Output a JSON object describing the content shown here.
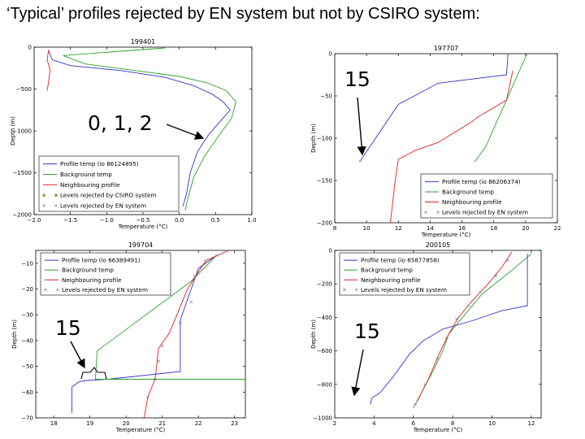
{
  "slide_title": "‘Typical’ profiles rejected by EN system but not by CSIRO system:",
  "colors": {
    "profile": "#3333cc",
    "background": "#2ca02c",
    "neighbour": "#e02020",
    "csiro": "#999933",
    "en": "#888888",
    "axis": "#000000",
    "annotation": "#000000"
  },
  "chart_data": [
    {
      "type": "line",
      "title": "199401",
      "xlabel": "Temperature (°C)",
      "ylabel": "Depth (m)",
      "xlim": [
        -2.0,
        1.0
      ],
      "ylim": [
        -2000,
        0
      ],
      "xticks": [
        -2.0,
        -1.5,
        -1.0,
        -0.5,
        0.0,
        0.5,
        1.0
      ],
      "xtick_labels": [
        "−2.0",
        "−1.5",
        "−1.0",
        "−0.5",
        "0.0",
        "0.5",
        "1.0"
      ],
      "yticks": [
        0,
        -500,
        -1000,
        -1500,
        -2000
      ],
      "ytick_labels": [
        "0",
        "−500",
        "−1000",
        "−1500",
        "−2000"
      ],
      "legend_position": "lower-left",
      "legend": [
        "Profile temp (io 86124895)",
        "Background temp",
        "Neighbouring profile",
        "Levels rejected by CSIRO system",
        "Levels rejected by EN system"
      ],
      "annotation": {
        "text": "0, 1, 2"
      },
      "series": [
        {
          "name": "Profile temp (io 86124895)",
          "color": "profile",
          "points": [
            [
              -1.8,
              -40
            ],
            [
              -1.75,
              -150
            ],
            [
              -1.5,
              -220
            ],
            [
              -0.8,
              -280
            ],
            [
              -0.2,
              -360
            ],
            [
              0.2,
              -460
            ],
            [
              0.45,
              -560
            ],
            [
              0.6,
              -650
            ],
            [
              0.7,
              -750
            ],
            [
              0.55,
              -900
            ],
            [
              0.4,
              -1050
            ],
            [
              0.25,
              -1250
            ],
            [
              0.15,
              -1500
            ],
            [
              0.1,
              -1750
            ],
            [
              0.05,
              -1900
            ]
          ]
        },
        {
          "name": "Background temp",
          "color": "background",
          "points": [
            [
              -0.2,
              -10
            ],
            [
              -1.6,
              -100
            ],
            [
              -1.3,
              -200
            ],
            [
              -0.6,
              -280
            ],
            [
              0.0,
              -350
            ],
            [
              0.4,
              -430
            ],
            [
              0.65,
              -520
            ],
            [
              0.78,
              -650
            ],
            [
              0.72,
              -850
            ],
            [
              0.55,
              -1050
            ],
            [
              0.35,
              -1300
            ],
            [
              0.2,
              -1550
            ],
            [
              0.12,
              -1800
            ],
            [
              0.08,
              -1950
            ]
          ]
        },
        {
          "name": "Neighbouring profile",
          "color": "neighbour",
          "points": [
            [
              -1.8,
              -30
            ],
            [
              -1.82,
              -150
            ],
            [
              -1.78,
              -280
            ],
            [
              -1.8,
              -400
            ],
            [
              -1.82,
              -520
            ]
          ]
        }
      ]
    },
    {
      "type": "line",
      "title": "197707",
      "xlabel": "Temperature (°C)",
      "ylabel": "Depth (m)",
      "xlim": [
        8,
        22
      ],
      "ylim": [
        -200,
        0
      ],
      "xticks": [
        8,
        10,
        12,
        14,
        16,
        18,
        20,
        22
      ],
      "xtick_labels": [
        "8",
        "10",
        "12",
        "14",
        "16",
        "18",
        "20",
        "22"
      ],
      "yticks": [
        0,
        -50,
        -100,
        -150,
        -200
      ],
      "ytick_labels": [
        "0",
        "−50",
        "−100",
        "−150",
        "−200"
      ],
      "legend_position": "lower-right",
      "legend": [
        "Profile temp (io 86206374)",
        "Background temp",
        "Neighbouring profile",
        "Levels rejected by EN system"
      ],
      "annotation": {
        "text": "15"
      },
      "series": [
        {
          "name": "Profile temp (io 86206374)",
          "color": "profile",
          "points": [
            [
              18.9,
              0
            ],
            [
              18.8,
              -25
            ],
            [
              14.5,
              -35
            ],
            [
              12,
              -60
            ],
            [
              9.6,
              -127
            ]
          ]
        },
        {
          "name": "Background temp",
          "color": "background",
          "points": [
            [
              20.1,
              0
            ],
            [
              19.5,
              -25
            ],
            [
              18.8,
              -55
            ],
            [
              18.2,
              -80
            ],
            [
              17.5,
              -110
            ],
            [
              16.8,
              -128
            ]
          ]
        },
        {
          "name": "Neighbouring profile",
          "color": "neighbour",
          "points": [
            [
              19.2,
              -20
            ],
            [
              18.8,
              -55
            ],
            [
              17.0,
              -75
            ],
            [
              16.5,
              -82
            ],
            [
              14.5,
              -105
            ],
            [
              13.0,
              -115
            ],
            [
              12.0,
              -125
            ],
            [
              11.8,
              -150
            ],
            [
              11.5,
              -200
            ]
          ]
        }
      ],
      "en_points": [
        [
          9.6,
          -127
        ]
      ]
    },
    {
      "type": "line",
      "title": "199704",
      "xlabel": "Temperature (°C)",
      "ylabel": "Depth (m)",
      "xlim": [
        17.5,
        23.3
      ],
      "ylim": [
        -70,
        -5
      ],
      "xticks": [
        18,
        19,
        20,
        21,
        22,
        23
      ],
      "xtick_labels": [
        "18",
        "19",
        "20",
        "21",
        "22",
        "23"
      ],
      "yticks": [
        -10,
        -20,
        -30,
        -40,
        -50,
        -60,
        -70
      ],
      "ytick_labels": [
        "−10",
        "−20",
        "−30",
        "−40",
        "−50",
        "−60",
        "−70"
      ],
      "legend_position": "top-left",
      "legend": [
        "Profile temp (io 66389491)",
        "Background temp",
        "Neighbouring profile",
        "Levels rejected by EN system"
      ],
      "annotation": {
        "text": "15"
      },
      "series": [
        {
          "name": "Profile temp (io 66389491)",
          "color": "profile",
          "points": [
            [
              22.5,
              -7
            ],
            [
              22.0,
              -12
            ],
            [
              21.8,
              -20
            ],
            [
              21.5,
              -32
            ],
            [
              21.5,
              -52
            ],
            [
              19.5,
              -55
            ],
            [
              18.9,
              -55.5
            ],
            [
              18.7,
              -56
            ],
            [
              18.5,
              -58
            ],
            [
              18.5,
              -68
            ]
          ]
        },
        {
          "name": "Background temp",
          "color": "background",
          "points": [
            [
              22.5,
              -7
            ],
            [
              21.8,
              -17
            ],
            [
              19.2,
              -44
            ],
            [
              19.15,
              -55
            ],
            [
              23.3,
              -55
            ]
          ]
        },
        {
          "name": "Neighbouring profile",
          "color": "neighbour",
          "points": [
            [
              23.0,
              -4
            ],
            [
              22.2,
              -9
            ],
            [
              21.7,
              -20
            ],
            [
              21.2,
              -37
            ],
            [
              20.9,
              -43
            ],
            [
              20.8,
              -55
            ],
            [
              20.6,
              -62
            ],
            [
              20.5,
              -70
            ]
          ]
        }
      ],
      "en_points": [
        [
          22.8,
          -5
        ],
        [
          22.5,
          -7
        ],
        [
          22.2,
          -9
        ],
        [
          21.9,
          -15
        ],
        [
          21.8,
          -25
        ],
        [
          21.5,
          -33
        ],
        [
          21.0,
          -42
        ],
        [
          20.9,
          -48
        ],
        [
          20.8,
          -55
        ],
        [
          20.6,
          -62
        ]
      ]
    },
    {
      "type": "line",
      "title": "200105",
      "xlabel": "Temperature (°C)",
      "ylabel": "Depth (m)",
      "xlim": [
        2,
        12.5
      ],
      "ylim": [
        -1000,
        0
      ],
      "xticks": [
        2,
        4,
        6,
        8,
        10,
        12
      ],
      "xtick_labels": [
        "2",
        "4",
        "6",
        "8",
        "10",
        "12"
      ],
      "yticks": [
        0,
        -200,
        -400,
        -600,
        -800,
        -1000
      ],
      "ytick_labels": [
        "0",
        "−200",
        "−400",
        "−600",
        "−800",
        "−1000"
      ],
      "legend_position": "top-left",
      "legend": [
        "Profile temp (io 65877858)",
        "Background temp",
        "Neighbouring profile",
        "Levels rejected by EN system"
      ],
      "annotation": {
        "text": "15"
      },
      "series": [
        {
          "name": "Profile temp (io 65877858)",
          "color": "profile",
          "points": [
            [
              11.8,
              -20
            ],
            [
              11.8,
              -330
            ],
            [
              10.5,
              -360
            ],
            [
              9.0,
              -420
            ],
            [
              7.5,
              -470
            ],
            [
              6.5,
              -540
            ],
            [
              5.8,
              -620
            ],
            [
              5.0,
              -750
            ],
            [
              4.3,
              -850
            ],
            [
              3.9,
              -880
            ],
            [
              3.8,
              -920
            ]
          ]
        },
        {
          "name": "Background temp",
          "color": "background",
          "points": [
            [
              12.0,
              -20
            ],
            [
              11.0,
              -120
            ],
            [
              9.5,
              -260
            ],
            [
              8.5,
              -400
            ],
            [
              7.8,
              -500
            ],
            [
              7.5,
              -600
            ],
            [
              7.0,
              -720
            ],
            [
              6.0,
              -940
            ]
          ]
        },
        {
          "name": "Neighbouring profile",
          "color": "neighbour",
          "points": [
            [
              11.0,
              -10
            ],
            [
              10.5,
              -100
            ],
            [
              9.8,
              -200
            ],
            [
              9.0,
              -300
            ],
            [
              8.3,
              -400
            ],
            [
              7.8,
              -500
            ],
            [
              7.3,
              -620
            ],
            [
              6.8,
              -760
            ],
            [
              6.2,
              -900
            ]
          ]
        }
      ],
      "en_points": [
        [
          10.8,
          -60
        ],
        [
          10.2,
          -150
        ],
        [
          9.4,
          -250
        ],
        [
          8.8,
          -330
        ],
        [
          8.2,
          -410
        ],
        [
          7.7,
          -520
        ],
        [
          7.2,
          -650
        ],
        [
          6.6,
          -800
        ],
        [
          6.1,
          -920
        ]
      ]
    }
  ]
}
